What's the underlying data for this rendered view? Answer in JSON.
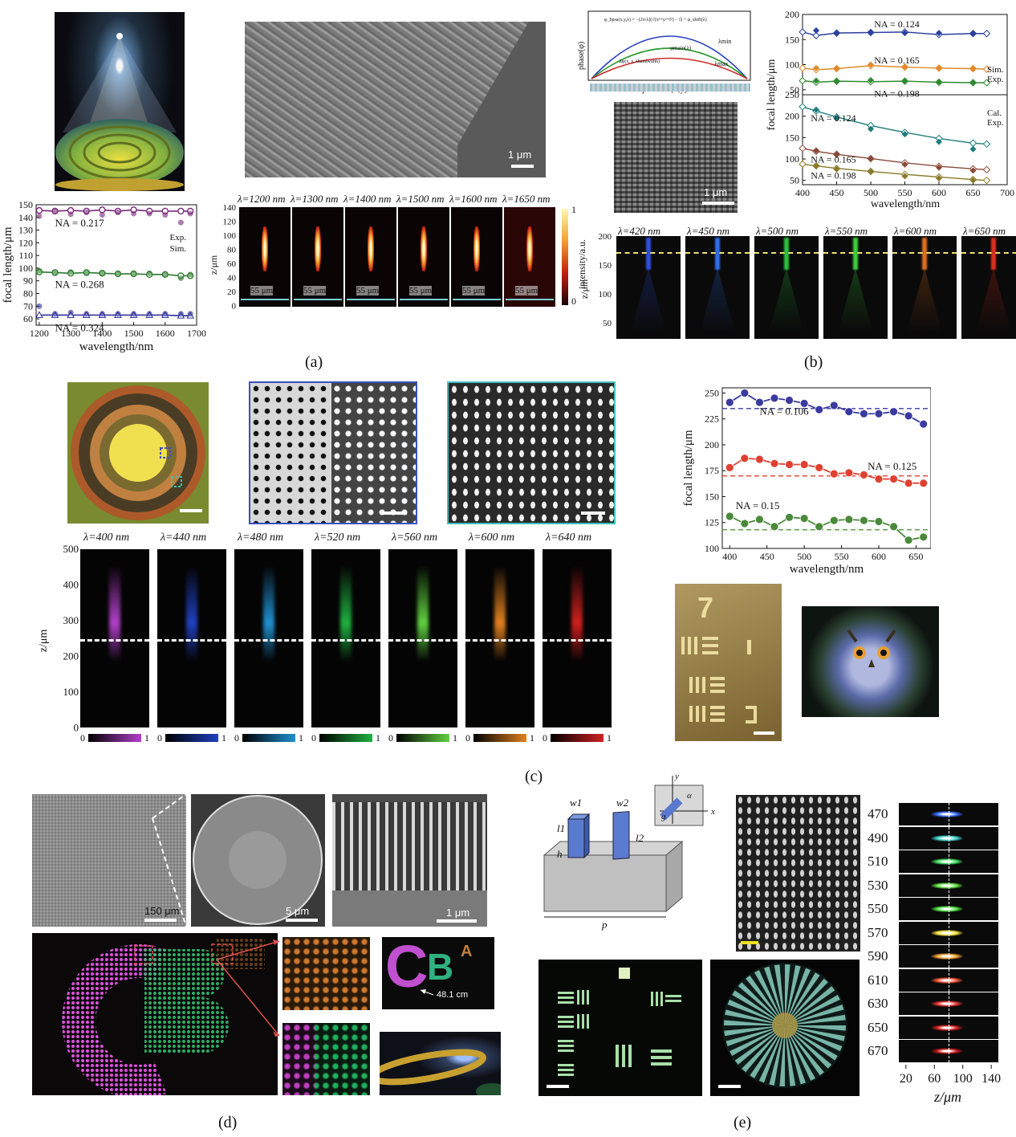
{
  "labels": {
    "a": "(a)",
    "b": "(b)",
    "c": "(c)",
    "d": "(d)",
    "e": "(e)"
  },
  "panel_a": {
    "sem_scale": "1 μm",
    "lambdas": [
      "λ=1200 nm",
      "λ=1300 nm",
      "λ=1400 nm",
      "λ=1500 nm",
      "λ=1600 nm",
      "λ=1650 nm"
    ],
    "width_label": "55 μm",
    "zaxis_label": "z/μm",
    "zticks": [
      "140",
      "120",
      "100",
      "80",
      "60",
      "40",
      "20",
      "0"
    ],
    "colorbar_label": "intensity/a.u.",
    "colorbar_ticks": [
      "1",
      "0"
    ]
  },
  "panel_b": {
    "phase_ylabel": "phase(φ)",
    "phase_xlabel": "position(x,y)",
    "phase_formula": "φ_bpsa(x,y,λ) = −(2π/λ)(√(x²+y²+f²) − f) + φ_shift(λ)",
    "lambda_min": "λmin",
    "lambda_max": "λmax",
    "phi_main": "φmain(λ)",
    "phi_bandwidth": "Δφ(x, y, λbandwidth)",
    "sem_scale": "1 μm",
    "lambdas": [
      "λ=420 nm",
      "λ=450 nm",
      "λ=500 nm",
      "λ=550 nm",
      "λ=600 nm",
      "λ=650 nm"
    ],
    "zaxis_label": "z/μm",
    "zticks": [
      "200",
      "150",
      "100",
      "50"
    ]
  },
  "panel_c": {
    "lambdas": [
      "λ=400 nm",
      "λ=440 nm",
      "λ=480 nm",
      "λ=520 nm",
      "λ=560 nm",
      "λ=600 nm",
      "λ=640 nm"
    ],
    "zaxis_label": "z/μm",
    "zticks": [
      "500",
      "400",
      "300",
      "200",
      "100",
      "0"
    ],
    "colorbar_ticks": [
      "0",
      "1"
    ],
    "colors": [
      "#b040c8",
      "#2040c0",
      "#2090d0",
      "#20b040",
      "#60d040",
      "#e08020",
      "#d02020"
    ]
  },
  "panel_d": {
    "sem1_scale": "150 μm",
    "sem2_scale": "5 μm",
    "sem3_scale": "1 μm",
    "distance": "48.1 cm",
    "letters": [
      "C",
      "B",
      "A"
    ]
  },
  "panel_e": {
    "schematic_labels": {
      "w1": "w1",
      "w2": "w2",
      "l1": "l1",
      "l2": "l2",
      "h": "h",
      "p": "p",
      "x": "x",
      "y": "y",
      "alpha": "α",
      "g": "g"
    },
    "wavelengths": [
      "470",
      "490",
      "510",
      "530",
      "550",
      "570",
      "590",
      "610",
      "630",
      "650",
      "670"
    ],
    "wl_colors": [
      "#3a6cff",
      "#3fd0d0",
      "#40e060",
      "#60e040",
      "#50e040",
      "#f0e040",
      "#f0a030",
      "#f05030",
      "#e03030",
      "#d02020",
      "#c01818"
    ],
    "z_ticks": [
      "20",
      "60",
      "100",
      "140"
    ],
    "z_label": "z/μm"
  },
  "chart_data": [
    {
      "id": "a-focal",
      "type": "line",
      "x_label": "wavelength/nm",
      "y_label": "focal length/μm",
      "xlim": [
        1190,
        1700
      ],
      "ylim": [
        55,
        150
      ],
      "xticks": [
        1200,
        1300,
        1400,
        1500,
        1600,
        1700
      ],
      "yticks": [
        60,
        70,
        80,
        90,
        100,
        110,
        120,
        130,
        140,
        150
      ],
      "legend": [
        "Exp.",
        "Sim."
      ],
      "series": [
        {
          "name": "NA = 0.217",
          "color": "#7a2a7a",
          "marker": "circle",
          "sim": [
            [
              1200,
              145.5
            ],
            [
              1250,
              145
            ],
            [
              1300,
              145.5
            ],
            [
              1350,
              145
            ],
            [
              1400,
              146
            ],
            [
              1450,
              145
            ],
            [
              1500,
              146
            ],
            [
              1550,
              145
            ],
            [
              1600,
              145
            ],
            [
              1650,
              145
            ],
            [
              1680,
              145
            ]
          ],
          "exp": [
            [
              1200,
              141
            ],
            [
              1250,
              145
            ],
            [
              1300,
              142.5
            ],
            [
              1350,
              144
            ],
            [
              1400,
              142
            ],
            [
              1450,
              144
            ],
            [
              1500,
              143
            ],
            [
              1550,
              143
            ],
            [
              1600,
              142
            ],
            [
              1650,
              136
            ],
            [
              1680,
              143
            ]
          ]
        },
        {
          "name": "NA = 0.268",
          "color": "#2e7d2e",
          "marker": "circle",
          "sim": [
            [
              1200,
              97
            ],
            [
              1250,
              96.5
            ],
            [
              1300,
              96
            ],
            [
              1350,
              96.5
            ],
            [
              1400,
              96
            ],
            [
              1450,
              95.5
            ],
            [
              1500,
              95.5
            ],
            [
              1550,
              95
            ],
            [
              1600,
              95
            ],
            [
              1650,
              94
            ],
            [
              1680,
              94
            ]
          ],
          "exp": [
            [
              1200,
              98
            ],
            [
              1250,
              96
            ],
            [
              1300,
              97
            ],
            [
              1350,
              96
            ],
            [
              1400,
              96
            ],
            [
              1450,
              96
            ],
            [
              1500,
              96
            ],
            [
              1550,
              96
            ],
            [
              1600,
              95
            ],
            [
              1650,
              92
            ],
            [
              1680,
              95
            ]
          ]
        },
        {
          "name": "NA = 0.324",
          "color": "#2a2a9a",
          "marker": "triangle",
          "sim": [
            [
              1200,
              63
            ],
            [
              1250,
              63
            ],
            [
              1300,
              63
            ],
            [
              1350,
              63
            ],
            [
              1400,
              63
            ],
            [
              1450,
              63
            ],
            [
              1500,
              63
            ],
            [
              1550,
              63
            ],
            [
              1600,
              63
            ],
            [
              1650,
              62.5
            ],
            [
              1680,
              62.5
            ]
          ],
          "exp": [
            [
              1200,
              70
            ],
            [
              1250,
              64
            ],
            [
              1300,
              65
            ],
            [
              1350,
              64
            ],
            [
              1400,
              64
            ],
            [
              1450,
              64
            ],
            [
              1500,
              64
            ],
            [
              1550,
              64
            ],
            [
              1600,
              64
            ],
            [
              1650,
              64
            ],
            [
              1680,
              64
            ]
          ]
        }
      ]
    },
    {
      "id": "b-top",
      "type": "line",
      "y_label": "focal length/μm",
      "xlim": [
        400,
        700
      ],
      "ylim": [
        40,
        200
      ],
      "yticks": [
        50,
        100,
        150,
        200
      ],
      "legend": [
        "Sim.",
        "Exp."
      ],
      "series": [
        {
          "name": "NA = 0.124",
          "color": "#2a3f9f",
          "sim": [
            [
              400,
              165
            ],
            [
              420,
              158
            ],
            [
              450,
              163
            ],
            [
              500,
              164
            ],
            [
              550,
              165
            ],
            [
              600,
              160
            ],
            [
              650,
              162
            ],
            [
              670,
              162
            ]
          ],
          "exp": [
            [
              420,
              168
            ],
            [
              450,
              162
            ],
            [
              500,
              165
            ],
            [
              550,
              163
            ],
            [
              600,
              163
            ],
            [
              650,
              162
            ]
          ]
        },
        {
          "name": "NA = 0.165",
          "color": "#e08a2a",
          "sim": [
            [
              400,
              93
            ],
            [
              420,
              90
            ],
            [
              450,
              92
            ],
            [
              500,
              98
            ],
            [
              550,
              95
            ],
            [
              600,
              93
            ],
            [
              650,
              92
            ],
            [
              670,
              91
            ]
          ],
          "exp": [
            [
              420,
              93
            ],
            [
              450,
              93
            ],
            [
              500,
              100
            ],
            [
              550,
              96
            ],
            [
              600,
              93
            ],
            [
              650,
              91
            ]
          ]
        },
        {
          "name": "NA = 0.198",
          "color": "#2e8b2e",
          "sim": [
            [
              400,
              68
            ],
            [
              420,
              65
            ],
            [
              450,
              67
            ],
            [
              500,
              66
            ],
            [
              550,
              67
            ],
            [
              600,
              65
            ],
            [
              650,
              64
            ],
            [
              670,
              64
            ]
          ],
          "exp": [
            [
              420,
              68
            ],
            [
              450,
              66
            ],
            [
              500,
              69
            ],
            [
              550,
              68
            ],
            [
              600,
              65
            ],
            [
              650,
              64
            ]
          ]
        }
      ]
    },
    {
      "id": "b-bottom",
      "type": "line",
      "x_label": "wavelength/nm",
      "xlim": [
        400,
        700
      ],
      "ylim": [
        40,
        250
      ],
      "xticks": [
        400,
        450,
        500,
        550,
        600,
        650,
        700
      ],
      "yticks": [
        50,
        100,
        150,
        200,
        250
      ],
      "legend": [
        "Cal.",
        "Exp."
      ],
      "series": [
        {
          "name": "NA = 0.124",
          "color": "#1e7d7d",
          "cal": [
            [
              400,
              222
            ],
            [
              420,
              212
            ],
            [
              450,
              198
            ],
            [
              500,
              178
            ],
            [
              550,
              162
            ],
            [
              600,
              148
            ],
            [
              650,
              137
            ],
            [
              670,
              135
            ]
          ],
          "exp": [
            [
              420,
              215
            ],
            [
              450,
              195
            ],
            [
              500,
              170
            ],
            [
              550,
              158
            ],
            [
              600,
              140
            ],
            [
              650,
              123
            ]
          ]
        },
        {
          "name": "NA = 0.165",
          "color": "#8a4a3a",
          "cal": [
            [
              400,
              125
            ],
            [
              420,
              118
            ],
            [
              450,
              111
            ],
            [
              500,
              101
            ],
            [
              550,
              91
            ],
            [
              600,
              83
            ],
            [
              650,
              77
            ],
            [
              670,
              75
            ]
          ],
          "exp": [
            [
              420,
              120
            ],
            [
              450,
              110
            ],
            [
              500,
              100
            ],
            [
              550,
              87
            ],
            [
              600,
              80
            ],
            [
              650,
              73
            ]
          ]
        },
        {
          "name": "NA = 0.198",
          "color": "#8a7a2a",
          "cal": [
            [
              400,
              88
            ],
            [
              420,
              84
            ],
            [
              450,
              78
            ],
            [
              500,
              71
            ],
            [
              550,
              64
            ],
            [
              600,
              58
            ],
            [
              650,
              52
            ],
            [
              670,
              50
            ]
          ],
          "exp": [
            [
              420,
              84
            ],
            [
              450,
              76
            ],
            [
              500,
              70
            ],
            [
              550,
              60
            ],
            [
              600,
              55
            ],
            [
              650,
              50
            ]
          ]
        }
      ]
    },
    {
      "id": "c-focal",
      "type": "line",
      "x_label": "wavelength/nm",
      "y_label": "focal length/μm",
      "xlim": [
        390,
        670
      ],
      "ylim": [
        100,
        255
      ],
      "xticks": [
        400,
        450,
        500,
        550,
        600,
        650
      ],
      "yticks": [
        100,
        125,
        150,
        175,
        200,
        225,
        250
      ],
      "series": [
        {
          "name": "NA = 0.106",
          "color": "#3a3aa0",
          "ref": 235,
          "values": [
            [
              400,
              241
            ],
            [
              420,
              250
            ],
            [
              440,
              241
            ],
            [
              460,
              245
            ],
            [
              480,
              243
            ],
            [
              500,
              240
            ],
            [
              520,
              234
            ],
            [
              540,
              238
            ],
            [
              560,
              232
            ],
            [
              580,
              230
            ],
            [
              600,
              230
            ],
            [
              620,
              232
            ],
            [
              640,
              228
            ],
            [
              660,
              220
            ]
          ]
        },
        {
          "name": "NA = 0.125",
          "color": "#e04030",
          "ref": 170,
          "values": [
            [
              400,
              178
            ],
            [
              420,
              187
            ],
            [
              440,
              186
            ],
            [
              460,
              182
            ],
            [
              480,
              181
            ],
            [
              500,
              181
            ],
            [
              520,
              178
            ],
            [
              540,
              172
            ],
            [
              560,
              173
            ],
            [
              580,
              171
            ],
            [
              600,
              167
            ],
            [
              620,
              167
            ],
            [
              640,
              163
            ],
            [
              660,
              163
            ]
          ]
        },
        {
          "name": "NA = 0.15",
          "color": "#4a8a3a",
          "ref": 118,
          "values": [
            [
              400,
              131
            ],
            [
              420,
              124
            ],
            [
              440,
              128
            ],
            [
              460,
              121
            ],
            [
              480,
              130
            ],
            [
              500,
              129
            ],
            [
              520,
              121
            ],
            [
              540,
              127
            ],
            [
              560,
              128
            ],
            [
              580,
              127
            ],
            [
              600,
              126
            ],
            [
              620,
              121
            ],
            [
              640,
              108
            ],
            [
              660,
              111
            ]
          ]
        }
      ]
    }
  ]
}
